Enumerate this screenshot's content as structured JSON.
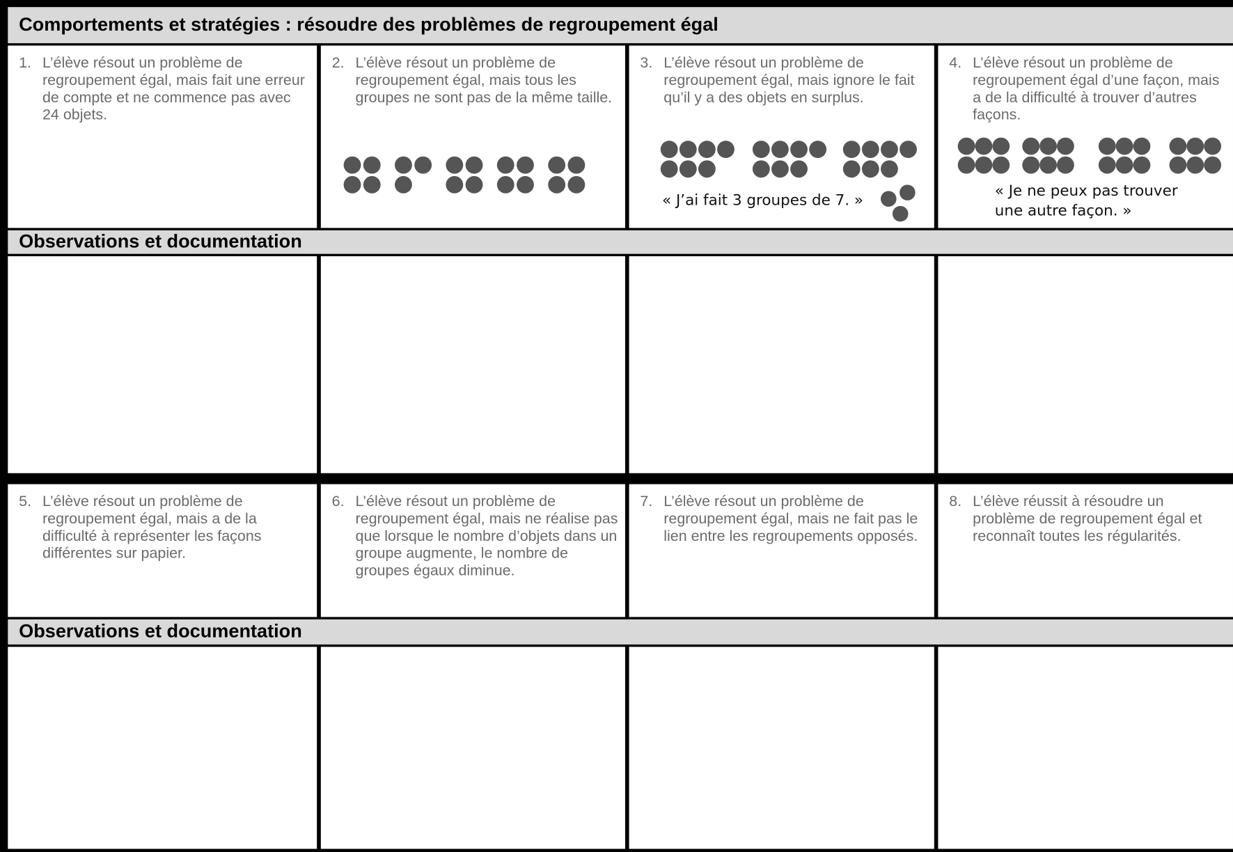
{
  "title": "Comportements et stratégies : résoudre des problèmes de regroupement égal",
  "sections": [
    {
      "items": [
        {
          "number": "1.",
          "text": "L’élève résout un problème de regroupement égal, mais fait une erreur de compte et ne commence pas avec 24 objets."
        },
        {
          "number": "2.",
          "text": "L’élève résout un problème de regroupement égal, mais tous les groupes ne sont pas de la même taille."
        },
        {
          "number": "3.",
          "text": "L’élève résout un problème de regroupement égal, mais ignore le fait qu’il y a des objets en surplus.",
          "quote": "« J’ai fait 3 groupes de 7. »"
        },
        {
          "number": "4.",
          "text": "L’élève résout un problème de regroupement égal d’une façon, mais a de la difficulté à trouver d’autres façons.",
          "quote": "« Je ne peux pas trouver une autre façon. »"
        }
      ],
      "observations_heading": "Observations et documentation"
    },
    {
      "items": [
        {
          "number": "5.",
          "text": "L’élève résout un problème de regroupement égal, mais a de la difficulté à représenter les façons différentes sur papier."
        },
        {
          "number": "6.",
          "text": "L’élève résout un problème de regroupement égal, mais ne réalise pas que lorsque le nombre d’objets dans un groupe augmente, le nombre de groupes égaux diminue."
        },
        {
          "number": "7.",
          "text": "L’élève résout un problème de regroupement égal, mais ne fait pas le lien entre les regroupements opposés."
        },
        {
          "number": "8.",
          "text": "L’élève réussit à résoudre un problème de regroupement égal et reconnaît toutes les régularités."
        }
      ],
      "observations_heading": "Observations et documentation"
    }
  ]
}
